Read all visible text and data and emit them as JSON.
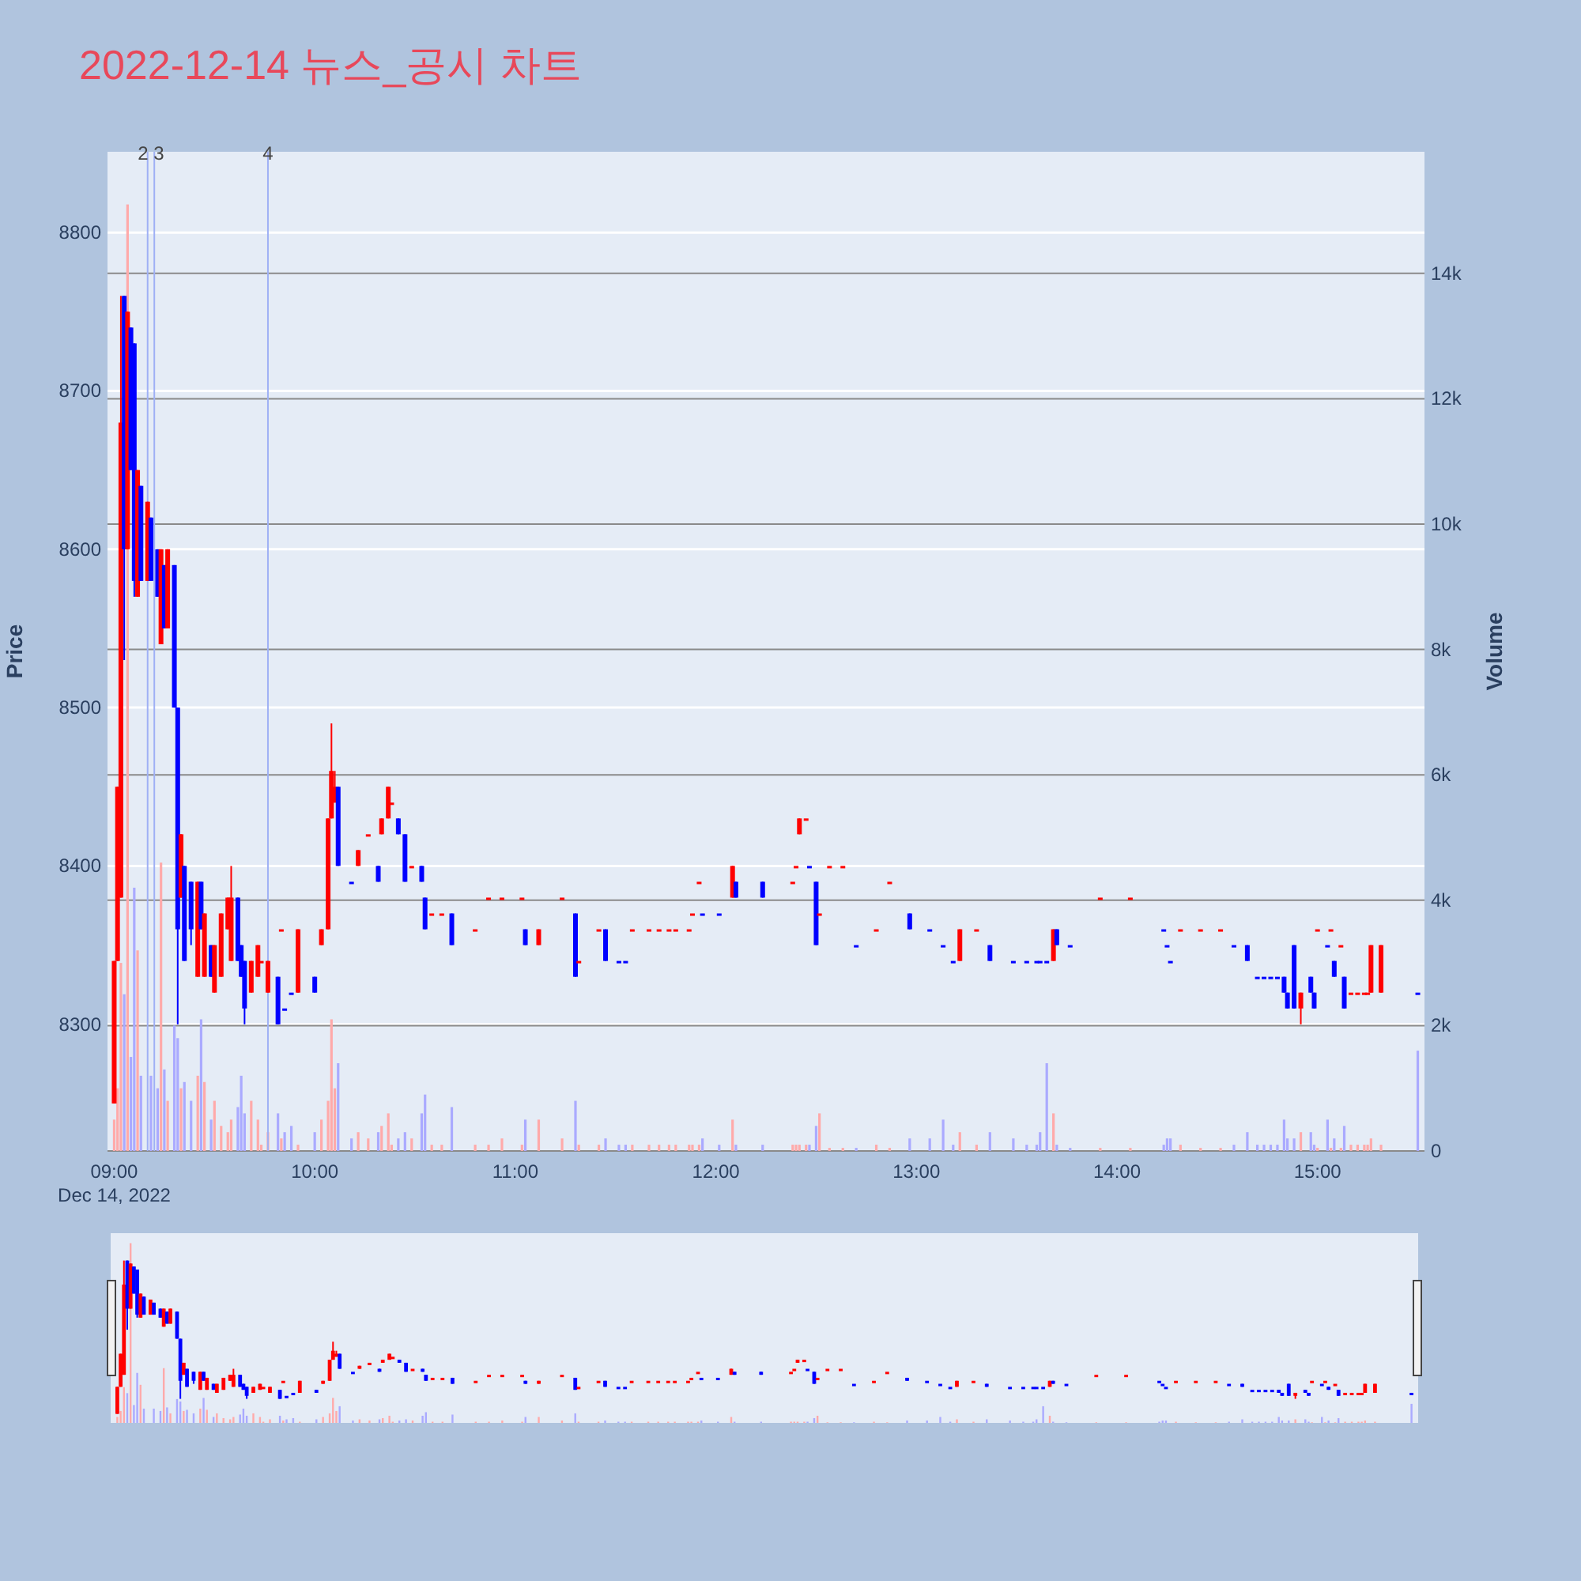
{
  "chart_data": {
    "type": "candlestick",
    "title": "2022-12-14 뉴스_공시 차트",
    "ylabel": "Price",
    "y2label": "Volume",
    "x": [
      "2022-12-14T09:00",
      "2022-12-14T09:01",
      "2022-12-14T09:02",
      "2022-12-14T09:03",
      "2022-12-14T09:04",
      "2022-12-14T09:05",
      "2022-12-14T09:06",
      "2022-12-14T09:07",
      "2022-12-14T09:08",
      "2022-12-14T09:10",
      "2022-12-14T09:11",
      "2022-12-14T09:13",
      "2022-12-14T09:14",
      "2022-12-14T09:15",
      "2022-12-14T09:16",
      "2022-12-14T09:18",
      "2022-12-14T09:19",
      "2022-12-14T09:20",
      "2022-12-14T09:21",
      "2022-12-14T09:23",
      "2022-12-14T09:25",
      "2022-12-14T09:26",
      "2022-12-14T09:27",
      "2022-12-14T09:29",
      "2022-12-14T09:30",
      "2022-12-14T09:32",
      "2022-12-14T09:34",
      "2022-12-14T09:35",
      "2022-12-14T09:37",
      "2022-12-14T09:38",
      "2022-12-14T09:39",
      "2022-12-14T09:41",
      "2022-12-14T09:43",
      "2022-12-14T09:44",
      "2022-12-14T09:46",
      "2022-12-14T09:49",
      "2022-12-14T09:50",
      "2022-12-14T09:51",
      "2022-12-14T09:53",
      "2022-12-14T09:55",
      "2022-12-14T10:00",
      "2022-12-14T10:02",
      "2022-12-14T10:04",
      "2022-12-14T10:05",
      "2022-12-14T10:06",
      "2022-12-14T10:07",
      "2022-12-14T10:11",
      "2022-12-14T10:13",
      "2022-12-14T10:16",
      "2022-12-14T10:19",
      "2022-12-14T10:20",
      "2022-12-14T10:22",
      "2022-12-14T10:23",
      "2022-12-14T10:25",
      "2022-12-14T10:27",
      "2022-12-14T10:29",
      "2022-12-14T10:32",
      "2022-12-14T10:33",
      "2022-12-14T10:35",
      "2022-12-14T10:38",
      "2022-12-14T10:41",
      "2022-12-14T10:48",
      "2022-12-14T10:52",
      "2022-12-14T10:56",
      "2022-12-14T11:02",
      "2022-12-14T11:03",
      "2022-12-14T11:07",
      "2022-12-14T11:14",
      "2022-12-14T11:18",
      "2022-12-14T11:19",
      "2022-12-14T11:25",
      "2022-12-14T11:27",
      "2022-12-14T11:31",
      "2022-12-14T11:33",
      "2022-12-14T11:35",
      "2022-12-14T11:40",
      "2022-12-14T11:43",
      "2022-12-14T11:46",
      "2022-12-14T11:48",
      "2022-12-14T11:52",
      "2022-12-14T11:53",
      "2022-12-14T11:55",
      "2022-12-14T11:56",
      "2022-12-14T12:01",
      "2022-12-14T12:05",
      "2022-12-14T12:06",
      "2022-12-14T12:14",
      "2022-12-14T12:23",
      "2022-12-14T12:24",
      "2022-12-14T12:25",
      "2022-12-14T12:27",
      "2022-12-14T12:28",
      "2022-12-14T12:30",
      "2022-12-14T12:31",
      "2022-12-14T12:34",
      "2022-12-14T12:38",
      "2022-12-14T12:42",
      "2022-12-14T12:48",
      "2022-12-14T12:52",
      "2022-12-14T12:58",
      "2022-12-14T13:04",
      "2022-12-14T13:08",
      "2022-12-14T13:11",
      "2022-12-14T13:13",
      "2022-12-14T13:18",
      "2022-12-14T13:22",
      "2022-12-14T13:29",
      "2022-12-14T13:33",
      "2022-12-14T13:36",
      "2022-12-14T13:37",
      "2022-12-14T13:39",
      "2022-12-14T13:41",
      "2022-12-14T13:42",
      "2022-12-14T13:46",
      "2022-12-14T13:55",
      "2022-12-14T14:04",
      "2022-12-14T14:14",
      "2022-12-14T14:15",
      "2022-12-14T14:16",
      "2022-12-14T14:19",
      "2022-12-14T14:25",
      "2022-12-14T14:31",
      "2022-12-14T14:35",
      "2022-12-14T14:39",
      "2022-12-14T14:42",
      "2022-12-14T14:44",
      "2022-12-14T14:46",
      "2022-12-14T14:48",
      "2022-12-14T14:50",
      "2022-12-14T14:51",
      "2022-12-14T14:53",
      "2022-12-14T14:55",
      "2022-12-14T14:58",
      "2022-12-14T14:59",
      "2022-12-14T15:00",
      "2022-12-14T15:03",
      "2022-12-14T15:04",
      "2022-12-14T15:05",
      "2022-12-14T15:07",
      "2022-12-14T15:08",
      "2022-12-14T15:10",
      "2022-12-14T15:12",
      "2022-12-14T15:14",
      "2022-12-14T15:15",
      "2022-12-14T15:16",
      "2022-12-14T15:19",
      "2022-12-14T15:30"
    ],
    "ohlc": [
      [
        8250,
        8340,
        8250,
        8340
      ],
      [
        8340,
        8450,
        8340,
        8450
      ],
      [
        8380,
        8760,
        8380,
        8680
      ],
      [
        8760,
        8760,
        8530,
        8600
      ],
      [
        8600,
        8750,
        8600,
        8750
      ],
      [
        8740,
        8740,
        8650,
        8650
      ],
      [
        8730,
        8730,
        8570,
        8580
      ],
      [
        8570,
        8650,
        8570,
        8650
      ],
      [
        8640,
        8640,
        8580,
        8580
      ],
      [
        8580,
        8630,
        8580,
        8630
      ],
      [
        8620,
        8620,
        8580,
        8580
      ],
      [
        8600,
        8600,
        8570,
        8570
      ],
      [
        8540,
        8600,
        8540,
        8600
      ],
      [
        8590,
        8590,
        8550,
        8550
      ],
      [
        8550,
        8600,
        8550,
        8600
      ],
      [
        8590,
        8590,
        8500,
        8500
      ],
      [
        8500,
        8500,
        8300,
        8360
      ],
      [
        8380,
        8420,
        8380,
        8420
      ],
      [
        8400,
        8400,
        8340,
        8340
      ],
      [
        8390,
        8390,
        8350,
        8360
      ],
      [
        8330,
        8390,
        8330,
        8390
      ],
      [
        8390,
        8390,
        8360,
        8360
      ],
      [
        8330,
        8370,
        8330,
        8370
      ],
      [
        8350,
        8350,
        8330,
        8330
      ],
      [
        8320,
        8350,
        8320,
        8350
      ],
      [
        8330,
        8370,
        8330,
        8370
      ],
      [
        8360,
        8380,
        8360,
        8380
      ],
      [
        8340,
        8400,
        8340,
        8380
      ],
      [
        8380,
        8380,
        8340,
        8340
      ],
      [
        8350,
        8350,
        8330,
        8330
      ],
      [
        8340,
        8340,
        8300,
        8310
      ],
      [
        8320,
        8340,
        8320,
        8340
      ],
      [
        8330,
        8350,
        8330,
        8350
      ],
      [
        8340,
        8340,
        8340,
        8340
      ],
      [
        8320,
        8340,
        8320,
        8340
      ],
      [
        8330,
        8330,
        8300,
        8300
      ],
      [
        8360,
        8360,
        8360,
        8360
      ],
      [
        8310,
        8310,
        8310,
        8310
      ],
      [
        8320,
        8320,
        8320,
        8320
      ],
      [
        8320,
        8360,
        8320,
        8360
      ],
      [
        8330,
        8330,
        8320,
        8320
      ],
      [
        8350,
        8360,
        8350,
        8360
      ],
      [
        8360,
        8430,
        8360,
        8430
      ],
      [
        8430,
        8490,
        8430,
        8460
      ],
      [
        8440,
        8460,
        8440,
        8450
      ],
      [
        8450,
        8450,
        8400,
        8400
      ],
      [
        8390,
        8390,
        8390,
        8390
      ],
      [
        8400,
        8410,
        8400,
        8410
      ],
      [
        8420,
        8420,
        8420,
        8420
      ],
      [
        8400,
        8400,
        8390,
        8390
      ],
      [
        8420,
        8430,
        8420,
        8430
      ],
      [
        8430,
        8450,
        8430,
        8450
      ],
      [
        8440,
        8440,
        8440,
        8440
      ],
      [
        8430,
        8430,
        8420,
        8420
      ],
      [
        8420,
        8420,
        8390,
        8390
      ],
      [
        8400,
        8400,
        8400,
        8400
      ],
      [
        8400,
        8400,
        8390,
        8390
      ],
      [
        8380,
        8380,
        8360,
        8360
      ],
      [
        8370,
        8370,
        8370,
        8370
      ],
      [
        8370,
        8370,
        8370,
        8370
      ],
      [
        8370,
        8370,
        8350,
        8350
      ],
      [
        8360,
        8360,
        8360,
        8360
      ],
      [
        8380,
        8380,
        8380,
        8380
      ],
      [
        8380,
        8380,
        8380,
        8380
      ],
      [
        8380,
        8380,
        8380,
        8380
      ],
      [
        8360,
        8360,
        8350,
        8350
      ],
      [
        8350,
        8360,
        8350,
        8360
      ],
      [
        8380,
        8380,
        8380,
        8380
      ],
      [
        8370,
        8370,
        8330,
        8330
      ],
      [
        8340,
        8340,
        8340,
        8340
      ],
      [
        8360,
        8360,
        8360,
        8360
      ],
      [
        8360,
        8360,
        8340,
        8340
      ],
      [
        8340,
        8340,
        8340,
        8340
      ],
      [
        8340,
        8340,
        8340,
        8340
      ],
      [
        8360,
        8360,
        8360,
        8360
      ],
      [
        8360,
        8360,
        8360,
        8360
      ],
      [
        8360,
        8360,
        8360,
        8360
      ],
      [
        8360,
        8360,
        8360,
        8360
      ],
      [
        8360,
        8360,
        8360,
        8360
      ],
      [
        8360,
        8360,
        8360,
        8360
      ],
      [
        8370,
        8370,
        8370,
        8370
      ],
      [
        8390,
        8390,
        8390,
        8390
      ],
      [
        8370,
        8370,
        8370,
        8370
      ],
      [
        8370,
        8370,
        8370,
        8370
      ],
      [
        8380,
        8400,
        8380,
        8400
      ],
      [
        8390,
        8390,
        8380,
        8380
      ],
      [
        8390,
        8390,
        8380,
        8380
      ],
      [
        8390,
        8390,
        8390,
        8390
      ],
      [
        8400,
        8400,
        8400,
        8400
      ],
      [
        8420,
        8430,
        8420,
        8430
      ],
      [
        8430,
        8430,
        8430,
        8430
      ],
      [
        8400,
        8400,
        8400,
        8400
      ],
      [
        8390,
        8390,
        8350,
        8350
      ],
      [
        8370,
        8370,
        8370,
        8370
      ],
      [
        8400,
        8400,
        8400,
        8400
      ],
      [
        8400,
        8400,
        8400,
        8400
      ],
      [
        8350,
        8350,
        8350,
        8350
      ],
      [
        8360,
        8360,
        8360,
        8360
      ],
      [
        8390,
        8390,
        8390,
        8390
      ],
      [
        8370,
        8370,
        8360,
        8360
      ],
      [
        8360,
        8360,
        8360,
        8360
      ],
      [
        8350,
        8350,
        8350,
        8350
      ],
      [
        8340,
        8340,
        8340,
        8340
      ],
      [
        8340,
        8360,
        8340,
        8360
      ],
      [
        8360,
        8360,
        8360,
        8360
      ],
      [
        8350,
        8350,
        8340,
        8340
      ],
      [
        8340,
        8340,
        8340,
        8340
      ],
      [
        8340,
        8340,
        8340,
        8340
      ],
      [
        8340,
        8340,
        8340,
        8340
      ],
      [
        8340,
        8340,
        8340,
        8340
      ],
      [
        8340,
        8340,
        8340,
        8340
      ],
      [
        8340,
        8360,
        8340,
        8360
      ],
      [
        8360,
        8360,
        8350,
        8350
      ],
      [
        8350,
        8350,
        8350,
        8350
      ],
      [
        8380,
        8380,
        8380,
        8380
      ],
      [
        8380,
        8380,
        8380,
        8380
      ],
      [
        8360,
        8360,
        8360,
        8360
      ],
      [
        8350,
        8350,
        8350,
        8350
      ],
      [
        8340,
        8340,
        8340,
        8340
      ],
      [
        8360,
        8360,
        8360,
        8360
      ],
      [
        8360,
        8360,
        8360,
        8360
      ],
      [
        8360,
        8360,
        8360,
        8360
      ],
      [
        8350,
        8350,
        8350,
        8350
      ],
      [
        8350,
        8350,
        8340,
        8340
      ],
      [
        8330,
        8330,
        8330,
        8330
      ],
      [
        8330,
        8330,
        8330,
        8330
      ],
      [
        8330,
        8330,
        8330,
        8330
      ],
      [
        8330,
        8330,
        8330,
        8330
      ],
      [
        8330,
        8330,
        8320,
        8320
      ],
      [
        8320,
        8320,
        8310,
        8310
      ],
      [
        8350,
        8350,
        8310,
        8310
      ],
      [
        8310,
        8320,
        8300,
        8320
      ],
      [
        8330,
        8330,
        8320,
        8320
      ],
      [
        8320,
        8320,
        8310,
        8310
      ],
      [
        8360,
        8360,
        8360,
        8360
      ],
      [
        8350,
        8350,
        8350,
        8350
      ],
      [
        8360,
        8360,
        8360,
        8360
      ],
      [
        8340,
        8340,
        8330,
        8330
      ],
      [
        8350,
        8350,
        8350,
        8350
      ],
      [
        8330,
        8330,
        8310,
        8310
      ],
      [
        8320,
        8320,
        8320,
        8320
      ],
      [
        8320,
        8320,
        8320,
        8320
      ],
      [
        8320,
        8320,
        8320,
        8320
      ],
      [
        8320,
        8320,
        8320,
        8320
      ],
      [
        8320,
        8350,
        8320,
        8350
      ],
      [
        8320,
        8350,
        8320,
        8350
      ],
      [
        8320,
        8320,
        8320,
        8320
      ]
    ],
    "colors": [
      "#ff0000",
      "#ff0000",
      "#ff0000",
      "#0000ff",
      "#ff0000",
      "#0000ff",
      "#0000ff",
      "#ff0000",
      "#0000ff",
      "#ff0000",
      "#0000ff",
      "#0000ff",
      "#ff0000",
      "#0000ff",
      "#ff0000",
      "#0000ff",
      "#0000ff",
      "#ff0000",
      "#0000ff",
      "#0000ff",
      "#ff0000",
      "#0000ff",
      "#ff0000",
      "#0000ff",
      "#ff0000",
      "#ff0000",
      "#ff0000",
      "#ff0000",
      "#0000ff",
      "#0000ff",
      "#0000ff",
      "#ff0000",
      "#ff0000",
      "#ff0000",
      "#ff0000",
      "#0000ff",
      "#ff0000",
      "#0000ff",
      "#0000ff",
      "#ff0000",
      "#0000ff",
      "#ff0000",
      "#ff0000",
      "#ff0000",
      "#ff0000",
      "#0000ff",
      "#0000ff",
      "#ff0000",
      "#ff0000",
      "#0000ff",
      "#ff0000",
      "#ff0000",
      "#ff0000",
      "#0000ff",
      "#0000ff",
      "#ff0000",
      "#0000ff",
      "#0000ff",
      "#ff0000",
      "#ff0000",
      "#0000ff",
      "#ff0000",
      "#ff0000",
      "#ff0000",
      "#ff0000",
      "#0000ff",
      "#ff0000",
      "#ff0000",
      "#0000ff",
      "#ff0000",
      "#ff0000",
      "#0000ff",
      "#0000ff",
      "#0000ff",
      "#ff0000",
      "#ff0000",
      "#ff0000",
      "#ff0000",
      "#ff0000",
      "#ff0000",
      "#ff0000",
      "#ff0000",
      "#0000ff",
      "#0000ff",
      "#ff0000",
      "#0000ff",
      "#0000ff",
      "#ff0000",
      "#ff0000",
      "#ff0000",
      "#ff0000",
      "#0000ff",
      "#0000ff",
      "#ff0000",
      "#ff0000",
      "#ff0000",
      "#0000ff",
      "#ff0000",
      "#ff0000",
      "#0000ff",
      "#0000ff",
      "#0000ff",
      "#0000ff",
      "#ff0000",
      "#ff0000",
      "#0000ff",
      "#0000ff",
      "#0000ff",
      "#0000ff",
      "#0000ff",
      "#0000ff",
      "#ff0000",
      "#0000ff",
      "#0000ff",
      "#ff0000",
      "#ff0000",
      "#0000ff",
      "#0000ff",
      "#0000ff",
      "#ff0000",
      "#ff0000",
      "#ff0000",
      "#0000ff",
      "#0000ff",
      "#0000ff",
      "#0000ff",
      "#0000ff",
      "#0000ff",
      "#0000ff",
      "#0000ff",
      "#0000ff",
      "#ff0000",
      "#0000ff",
      "#0000ff",
      "#ff0000",
      "#0000ff",
      "#ff0000",
      "#0000ff",
      "#ff0000",
      "#0000ff",
      "#ff0000",
      "#ff0000",
      "#ff0000",
      "#ff0000",
      "#ff0000",
      "#ff0000",
      "#0000ff"
    ],
    "series": [
      {
        "type": "bar",
        "axis": "y2",
        "values": [
          500,
          1000,
          3000,
          2500,
          15100,
          1500,
          4200,
          3200,
          1200,
          null,
          1200,
          1000,
          4600,
          1300,
          800,
          2000,
          1800,
          1000,
          1100,
          800,
          1200,
          2100,
          1100,
          500,
          800,
          400,
          300,
          500,
          700,
          1200,
          600,
          800,
          500,
          100,
          300,
          600,
          200,
          300,
          400,
          100,
          300,
          500,
          800,
          2100,
          1000,
          1400,
          200,
          300,
          200,
          300,
          400,
          600,
          100,
          200,
          300,
          200,
          600,
          900,
          100,
          100,
          700,
          100,
          100,
          200,
          100,
          500,
          500,
          200,
          800,
          100,
          100,
          200,
          100,
          100,
          100,
          100,
          100,
          100,
          100,
          100,
          100,
          100,
          200,
          100,
          500,
          100,
          100,
          100,
          100,
          100,
          100,
          100,
          400,
          600,
          50,
          50,
          50,
          100,
          50,
          200,
          200,
          500,
          100,
          300,
          100,
          300,
          200,
          100,
          100,
          300,
          1400,
          600,
          100,
          50,
          50,
          50,
          100,
          200,
          200,
          100,
          50,
          50,
          100,
          300,
          100,
          100,
          100,
          100,
          500,
          200,
          200,
          300,
          300,
          100,
          50,
          500,
          50,
          200,
          50,
          400,
          100,
          100,
          100,
          100,
          200,
          100,
          1600
        ],
        "colors": [
          "#ffaaaa",
          "#ffaaaa",
          "#ffaaaa",
          "#aaaaff",
          "#ffaaaa",
          "#aaaaff",
          "#aaaaff",
          "#ffaaaa",
          "#aaaaff",
          null,
          "#aaaaff",
          "#aaaaff",
          "#ffaaaa",
          "#aaaaff",
          "#ffaaaa",
          "#aaaaff",
          "#aaaaff",
          "#ffaaaa",
          "#aaaaff",
          "#aaaaff",
          "#ffaaaa",
          "#aaaaff",
          "#ffaaaa",
          "#aaaaff",
          "#ffaaaa",
          "#ffaaaa",
          "#ffaaaa",
          "#ffaaaa",
          "#aaaaff",
          "#aaaaff",
          "#aaaaff",
          "#ffaaaa",
          "#ffaaaa",
          "#ffaaaa",
          "#ffaaaa",
          "#aaaaff",
          "#ffaaaa",
          "#aaaaff",
          "#aaaaff",
          "#ffaaaa",
          "#aaaaff",
          "#ffaaaa",
          "#ffaaaa",
          "#ffaaaa",
          "#ffaaaa",
          "#aaaaff",
          "#aaaaff",
          "#ffaaaa",
          "#ffaaaa",
          "#aaaaff",
          "#ffaaaa",
          "#ffaaaa",
          "#ffaaaa",
          "#aaaaff",
          "#aaaaff",
          "#ffaaaa",
          "#aaaaff",
          "#aaaaff",
          "#ffaaaa",
          "#ffaaaa",
          "#aaaaff",
          "#ffaaaa",
          "#ffaaaa",
          "#ffaaaa",
          "#ffaaaa",
          "#aaaaff",
          "#ffaaaa",
          "#ffaaaa",
          "#aaaaff",
          "#ffaaaa",
          "#ffaaaa",
          "#aaaaff",
          "#aaaaff",
          "#aaaaff",
          "#ffaaaa",
          "#ffaaaa",
          "#ffaaaa",
          "#ffaaaa",
          "#ffaaaa",
          "#ffaaaa",
          "#ffaaaa",
          "#ffaaaa",
          "#aaaaff",
          "#aaaaff",
          "#ffaaaa",
          "#aaaaff",
          "#aaaaff",
          "#ffaaaa",
          "#ffaaaa",
          "#ffaaaa",
          "#ffaaaa",
          "#aaaaff",
          "#aaaaff",
          "#ffaaaa",
          "#ffaaaa",
          "#ffaaaa",
          "#aaaaff",
          "#ffaaaa",
          "#ffaaaa",
          "#aaaaff",
          "#aaaaff",
          "#aaaaff",
          "#aaaaff",
          "#ffaaaa",
          "#ffaaaa",
          "#aaaaff",
          "#aaaaff",
          "#aaaaff",
          "#aaaaff",
          "#aaaaff",
          "#aaaaff",
          "#ffaaaa",
          "#aaaaff",
          "#aaaaff",
          "#ffaaaa",
          "#ffaaaa",
          "#aaaaff",
          "#aaaaff",
          "#aaaaff",
          "#ffaaaa",
          "#ffaaaa",
          "#ffaaaa",
          "#aaaaff",
          "#aaaaff",
          "#aaaaff",
          "#aaaaff",
          "#aaaaff",
          "#aaaaff",
          "#aaaaff",
          "#aaaaff",
          "#aaaaff",
          "#ffaaaa",
          "#aaaaff",
          "#aaaaff",
          "#ffaaaa",
          "#aaaaff",
          "#ffaaaa",
          "#aaaaff",
          "#ffaaaa",
          "#aaaaff",
          "#ffaaaa",
          "#ffaaaa",
          "#ffaaaa",
          "#ffaaaa",
          "#ffaaaa",
          "#ffaaaa",
          "#aaaaff"
        ]
      }
    ],
    "xlim": [
      "2022-12-14T08:58",
      "2022-12-14T15:32"
    ],
    "xticks": [
      {
        "value": "2022-12-14T09:00",
        "label": "09:00\nDec 14, 2022"
      },
      {
        "value": "2022-12-14T10:00",
        "label": "10:00"
      },
      {
        "value": "2022-12-14T11:00",
        "label": "11:00"
      },
      {
        "value": "2022-12-14T12:00",
        "label": "12:00"
      },
      {
        "value": "2022-12-14T13:00",
        "label": "13:00"
      },
      {
        "value": "2022-12-14T14:00",
        "label": "14:00"
      },
      {
        "value": "2022-12-14T15:00",
        "label": "15:00"
      }
    ],
    "ylim": [
      8220,
      8851
    ],
    "yticks": [
      8300,
      8400,
      8500,
      8600,
      8700,
      8800
    ],
    "y2lim": [
      0,
      15940
    ],
    "y2ticks": [
      0,
      {
        "value": 2000,
        "label": "2k"
      },
      {
        "value": 4000,
        "label": "4k"
      },
      {
        "value": 6000,
        "label": "6k"
      },
      {
        "value": 8000,
        "label": "8k"
      },
      {
        "value": 10000,
        "label": "10k"
      },
      {
        "value": 12000,
        "label": "12k"
      },
      {
        "value": 14000,
        "label": "14k"
      }
    ],
    "ref_lines": [
      {
        "axis": "x",
        "value": "2022-12-14T09:10",
        "label": "2",
        "color": "#9fb0f5"
      },
      {
        "axis": "x",
        "value": "2022-12-14T09:12",
        "label": "3",
        "color": "#9fb0f5"
      },
      {
        "axis": "x",
        "value": "2022-12-14T09:46",
        "label": "4",
        "color": "#9fb0f5"
      }
    ],
    "grid": true
  }
}
